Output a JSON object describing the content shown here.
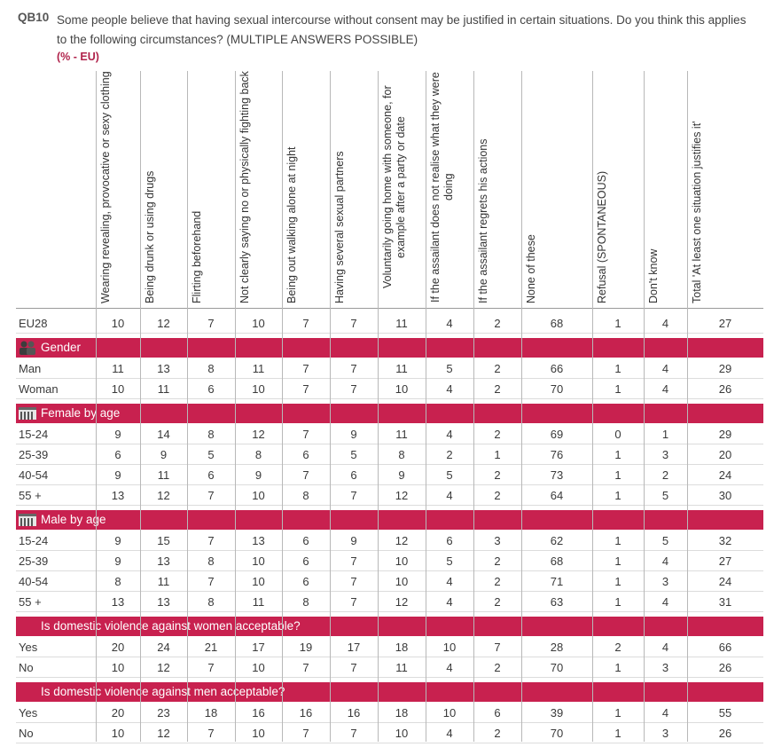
{
  "header": {
    "code": "QB10",
    "question": "Some people believe that having sexual intercourse without consent may be justified in certain situations. Do you think this applies to the following circumstances? (MULTIPLE ANSWERS POSSIBLE)",
    "unit": "(% - EU)"
  },
  "table": {
    "columns": [
      "Wearing revealing, provocative or sexy clothing",
      "Being drunk or using drugs",
      "Flirting beforehand",
      "Not clearly saying no or physically fighting back",
      "Being out walking alone at night",
      "Having several sexual partners",
      "Voluntarily going home with someone, for example after a party or date",
      "If the assailant does not realise what they were doing",
      "If the assailant regrets his actions",
      "None of these",
      "Refusal (SPONTANEOUS)",
      "Don't know",
      "Total 'At least one situation justifies it'"
    ],
    "total_row": {
      "label": "EU28",
      "values": [
        10,
        12,
        7,
        10,
        7,
        7,
        11,
        4,
        2,
        68,
        1,
        4,
        27
      ]
    },
    "sections": [
      {
        "title": "Gender",
        "rows": [
          {
            "label": "Man",
            "values": [
              11,
              13,
              8,
              11,
              7,
              7,
              11,
              5,
              2,
              66,
              1,
              4,
              29
            ]
          },
          {
            "label": "Woman",
            "values": [
              10,
              11,
              6,
              10,
              7,
              7,
              10,
              4,
              2,
              70,
              1,
              4,
              26
            ]
          }
        ]
      },
      {
        "title": "Female by age",
        "rows": [
          {
            "label": "15-24",
            "values": [
              9,
              14,
              8,
              12,
              7,
              9,
              11,
              4,
              2,
              69,
              0,
              1,
              29
            ]
          },
          {
            "label": "25-39",
            "values": [
              6,
              9,
              5,
              8,
              6,
              5,
              8,
              2,
              1,
              76,
              1,
              3,
              20
            ]
          },
          {
            "label": "40-54",
            "values": [
              9,
              11,
              6,
              9,
              7,
              6,
              9,
              5,
              2,
              73,
              1,
              2,
              24
            ]
          },
          {
            "label": "55 +",
            "values": [
              13,
              12,
              7,
              10,
              8,
              7,
              12,
              4,
              2,
              64,
              1,
              5,
              30
            ]
          }
        ]
      },
      {
        "title": "Male by age",
        "rows": [
          {
            "label": "15-24",
            "values": [
              9,
              15,
              7,
              13,
              6,
              9,
              12,
              6,
              3,
              62,
              1,
              5,
              32
            ]
          },
          {
            "label": "25-39",
            "values": [
              9,
              13,
              8,
              10,
              6,
              7,
              10,
              5,
              2,
              68,
              1,
              4,
              27
            ]
          },
          {
            "label": "40-54",
            "values": [
              8,
              11,
              7,
              10,
              6,
              7,
              10,
              4,
              2,
              71,
              1,
              3,
              24
            ]
          },
          {
            "label": "55 +",
            "values": [
              13,
              13,
              8,
              11,
              8,
              7,
              12,
              4,
              2,
              63,
              1,
              4,
              31
            ]
          }
        ]
      },
      {
        "title": "Is domestic violence against women acceptable?",
        "rows": [
          {
            "label": "Yes",
            "values": [
              20,
              24,
              21,
              17,
              19,
              17,
              18,
              10,
              7,
              28,
              2,
              4,
              66
            ]
          },
          {
            "label": "No",
            "values": [
              10,
              12,
              7,
              10,
              7,
              7,
              11,
              4,
              2,
              70,
              1,
              3,
              26
            ]
          }
        ]
      },
      {
        "title": "Is domestic violence against men acceptable?",
        "rows": [
          {
            "label": "Yes",
            "values": [
              20,
              23,
              18,
              16,
              16,
              16,
              18,
              10,
              6,
              39,
              1,
              4,
              55
            ]
          },
          {
            "label": "No",
            "values": [
              10,
              12,
              7,
              10,
              7,
              7,
              10,
              4,
              2,
              70,
              1,
              3,
              26
            ]
          }
        ]
      }
    ]
  }
}
